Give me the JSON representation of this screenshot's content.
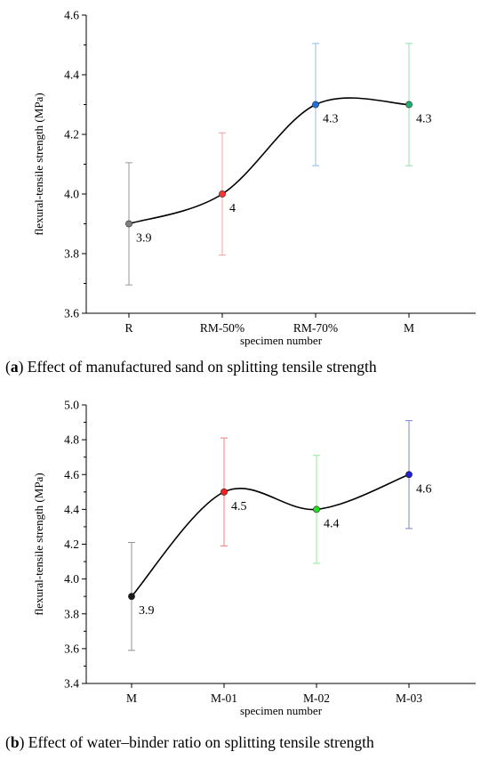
{
  "chart_data": [
    {
      "type": "line",
      "categories": [
        "R",
        "RM-50%",
        "RM-70%",
        "M"
      ],
      "values": [
        3.9,
        4.0,
        4.3,
        4.3
      ],
      "data_labels": [
        "3.9",
        "4",
        "4.3",
        "4.3"
      ],
      "error": [
        0.205,
        0.205,
        0.205,
        0.205
      ],
      "point_colors": [
        "#808080",
        "#ff3333",
        "#1e6fe0",
        "#20b070"
      ],
      "error_colors": [
        "#9a9a9a",
        "#f4a0a0",
        "#8fbfe6",
        "#8fe0b0"
      ],
      "ylim": [
        3.6,
        4.6
      ],
      "yticks": [
        "3.6",
        "3.8",
        "4.0",
        "4.2",
        "4.4",
        "4.6"
      ],
      "ylabel": "flexural-tensile strength (MPa)",
      "xlabel": "specimen number",
      "caption_letter": "a",
      "caption_text": " Effect of manufactured sand on splitting tensile strength"
    },
    {
      "type": "line",
      "categories": [
        "M",
        "M-01",
        "M-02",
        "M-03"
      ],
      "values": [
        3.9,
        4.5,
        4.4,
        4.6
      ],
      "data_labels": [
        "3.9",
        "4.5",
        "4.4",
        "4.6"
      ],
      "error": [
        0.31,
        0.31,
        0.31,
        0.31
      ],
      "point_colors": [
        "#1a1a1a",
        "#ff2020",
        "#20e020",
        "#2020d0"
      ],
      "error_colors": [
        "#909090",
        "#f08080",
        "#90ee90",
        "#8080e0"
      ],
      "ylim": [
        3.4,
        5.0
      ],
      "yticks": [
        "3.4",
        "3.6",
        "3.8",
        "4.0",
        "4.2",
        "4.4",
        "4.6",
        "4.8",
        "5.0"
      ],
      "ylabel": "flexural-tensile strength (MPa)",
      "xlabel": "specimen number",
      "caption_letter": "b",
      "caption_text": " Effect of water–binder ratio on splitting tensile strength"
    }
  ]
}
